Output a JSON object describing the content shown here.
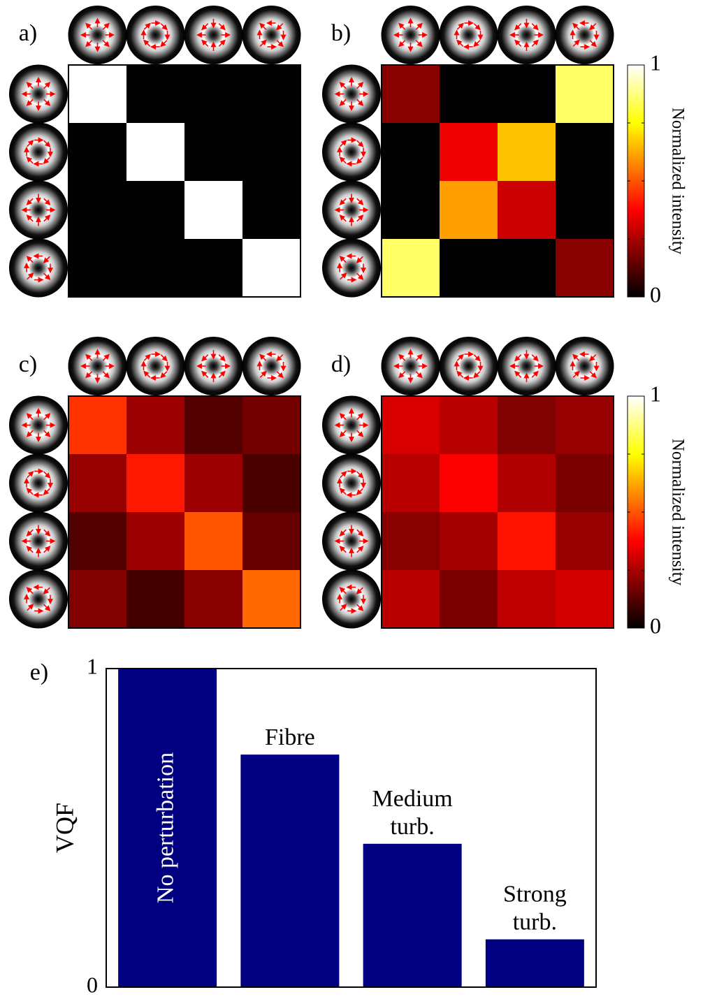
{
  "chart_data": [
    {
      "type": "heatmap",
      "label": "a)",
      "colormap": "hot",
      "zlim": [
        0,
        1
      ],
      "colorbar": false,
      "values": [
        [
          1,
          0,
          0,
          0
        ],
        [
          0,
          1,
          0,
          0
        ],
        [
          0,
          0,
          1,
          0
        ],
        [
          0,
          0,
          0,
          1
        ]
      ]
    },
    {
      "type": "heatmap",
      "label": "b)",
      "colormap": "hot",
      "zlim": [
        0,
        1
      ],
      "colorbar": true,
      "colorbar_label": "Normalized intensity",
      "cticks": [
        0,
        1
      ],
      "cminor_ticks": [
        0.25,
        0.5,
        0.75
      ],
      "values": [
        [
          0.2,
          0,
          0,
          0.85
        ],
        [
          0,
          0.35,
          0.66,
          0
        ],
        [
          0,
          0.61,
          0.3,
          0
        ],
        [
          0.85,
          0,
          0,
          0.2
        ]
      ]
    },
    {
      "type": "heatmap",
      "label": "c)",
      "colormap": "hot",
      "zlim": [
        0,
        1
      ],
      "colorbar": false,
      "values": [
        [
          0.45,
          0.23,
          0.12,
          0.17
        ],
        [
          0.22,
          0.41,
          0.23,
          0.11
        ],
        [
          0.12,
          0.23,
          0.5,
          0.15
        ],
        [
          0.19,
          0.1,
          0.2,
          0.53
        ]
      ]
    },
    {
      "type": "heatmap",
      "label": "d)",
      "colormap": "hot",
      "zlim": [
        0,
        1
      ],
      "colorbar": true,
      "colorbar_label": "Normalized intensity",
      "cticks": [
        0,
        1
      ],
      "cminor_ticks": [
        0.25,
        0.5,
        0.75
      ],
      "values": [
        [
          0.32,
          0.27,
          0.19,
          0.22
        ],
        [
          0.27,
          0.37,
          0.26,
          0.18
        ],
        [
          0.2,
          0.24,
          0.4,
          0.22
        ],
        [
          0.27,
          0.18,
          0.28,
          0.31
        ]
      ]
    },
    {
      "type": "bar",
      "label": "e)",
      "ylabel": "VQF",
      "color": "#000080",
      "categories": [
        "No perturbation",
        "Fibre",
        "Medium turb.",
        "Strong turb."
      ],
      "values": [
        1,
        0.73,
        0.45,
        0.15
      ],
      "ylim": [
        0,
        1
      ],
      "yticks": [
        0,
        1
      ]
    }
  ]
}
